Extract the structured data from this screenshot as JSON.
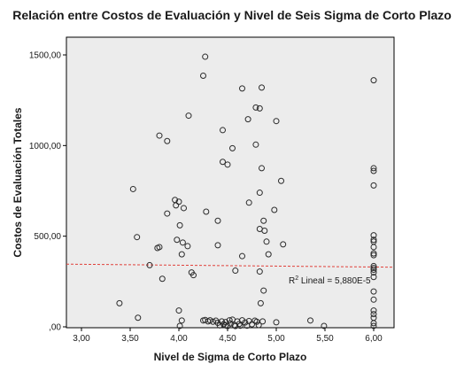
{
  "chart_data": {
    "type": "scatter",
    "title": "Relación entre Costos de Evaluación y Nivel de Seis Sigma de Corto Plazo",
    "xlabel": "Nivel de Sigma de Corto Plazo",
    "ylabel": "Costos de Evaluación Totales",
    "xlim": [
      3.0,
      6.0
    ],
    "ylim": [
      0,
      1500
    ],
    "xticks": [
      3.0,
      3.5,
      4.0,
      4.5,
      5.0,
      5.5,
      6.0
    ],
    "xtick_labels": [
      "3,00",
      "3,50",
      "4,00",
      "4,50",
      "5,00",
      "5,50",
      "6,00"
    ],
    "yticks": [
      0,
      500,
      1000,
      1500
    ],
    "ytick_labels": [
      ",00",
      "500,00",
      "1000,00",
      "1500,00"
    ],
    "grid": false,
    "background_color": "#ececec",
    "marker_color": "#2b2b2b",
    "fit_line": {
      "type": "linear",
      "style": "dashed",
      "color": "#e0403a",
      "x": [
        3.0,
        6.0
      ],
      "y": [
        345,
        330
      ],
      "annotation_prefix": "R",
      "annotation_sup": "2",
      "annotation_text": " Lineal = 5,880E-5"
    },
    "points": [
      {
        "x": 4.27,
        "y": 1490
      },
      {
        "x": 4.25,
        "y": 1385
      },
      {
        "x": 4.65,
        "y": 1315
      },
      {
        "x": 4.85,
        "y": 1320
      },
      {
        "x": 6.0,
        "y": 1360
      },
      {
        "x": 4.79,
        "y": 1210
      },
      {
        "x": 4.83,
        "y": 1205
      },
      {
        "x": 4.1,
        "y": 1165
      },
      {
        "x": 4.71,
        "y": 1145
      },
      {
        "x": 5.0,
        "y": 1135
      },
      {
        "x": 4.45,
        "y": 1085
      },
      {
        "x": 3.8,
        "y": 1055
      },
      {
        "x": 3.88,
        "y": 1025
      },
      {
        "x": 4.79,
        "y": 1005
      },
      {
        "x": 4.55,
        "y": 985
      },
      {
        "x": 4.45,
        "y": 910
      },
      {
        "x": 4.5,
        "y": 895
      },
      {
        "x": 4.85,
        "y": 875
      },
      {
        "x": 5.05,
        "y": 805
      },
      {
        "x": 3.53,
        "y": 760
      },
      {
        "x": 4.83,
        "y": 740
      },
      {
        "x": 4.0,
        "y": 690
      },
      {
        "x": 3.96,
        "y": 700
      },
      {
        "x": 3.97,
        "y": 670
      },
      {
        "x": 4.72,
        "y": 685
      },
      {
        "x": 4.05,
        "y": 655
      },
      {
        "x": 4.28,
        "y": 635
      },
      {
        "x": 4.98,
        "y": 645
      },
      {
        "x": 3.88,
        "y": 625
      },
      {
        "x": 4.4,
        "y": 585
      },
      {
        "x": 4.87,
        "y": 585
      },
      {
        "x": 4.01,
        "y": 560
      },
      {
        "x": 4.83,
        "y": 540
      },
      {
        "x": 4.88,
        "y": 530
      },
      {
        "x": 3.57,
        "y": 495
      },
      {
        "x": 3.98,
        "y": 480
      },
      {
        "x": 4.04,
        "y": 465
      },
      {
        "x": 4.9,
        "y": 470
      },
      {
        "x": 4.09,
        "y": 445
      },
      {
        "x": 4.4,
        "y": 450
      },
      {
        "x": 5.07,
        "y": 455
      },
      {
        "x": 3.8,
        "y": 440
      },
      {
        "x": 3.78,
        "y": 435
      },
      {
        "x": 4.03,
        "y": 400
      },
      {
        "x": 4.65,
        "y": 390
      },
      {
        "x": 4.92,
        "y": 400
      },
      {
        "x": 3.7,
        "y": 340
      },
      {
        "x": 4.13,
        "y": 300
      },
      {
        "x": 4.15,
        "y": 285
      },
      {
        "x": 3.83,
        "y": 265
      },
      {
        "x": 4.83,
        "y": 305
      },
      {
        "x": 4.58,
        "y": 310
      },
      {
        "x": 4.87,
        "y": 200
      },
      {
        "x": 4.84,
        "y": 130
      },
      {
        "x": 3.39,
        "y": 130
      },
      {
        "x": 4.0,
        "y": 90
      },
      {
        "x": 3.58,
        "y": 50
      },
      {
        "x": 4.03,
        "y": 35
      },
      {
        "x": 4.01,
        "y": 5
      },
      {
        "x": 5.35,
        "y": 35
      },
      {
        "x": 5.49,
        "y": 5
      },
      {
        "x": 5.0,
        "y": 25
      },
      {
        "x": 4.25,
        "y": 35
      },
      {
        "x": 4.27,
        "y": 38
      },
      {
        "x": 4.3,
        "y": 30
      },
      {
        "x": 4.32,
        "y": 36
      },
      {
        "x": 4.35,
        "y": 28
      },
      {
        "x": 4.38,
        "y": 34
      },
      {
        "x": 4.4,
        "y": 22
      },
      {
        "x": 4.42,
        "y": 8
      },
      {
        "x": 4.44,
        "y": 30
      },
      {
        "x": 4.46,
        "y": 14
      },
      {
        "x": 4.48,
        "y": 26
      },
      {
        "x": 4.5,
        "y": 4
      },
      {
        "x": 4.52,
        "y": 36
      },
      {
        "x": 4.53,
        "y": 18
      },
      {
        "x": 4.55,
        "y": 40
      },
      {
        "x": 4.57,
        "y": 10
      },
      {
        "x": 4.6,
        "y": 30
      },
      {
        "x": 4.62,
        "y": 16
      },
      {
        "x": 4.65,
        "y": 36
      },
      {
        "x": 4.68,
        "y": 24
      },
      {
        "x": 4.7,
        "y": 6
      },
      {
        "x": 4.72,
        "y": 32
      },
      {
        "x": 4.75,
        "y": 14
      },
      {
        "x": 4.78,
        "y": 34
      },
      {
        "x": 4.8,
        "y": 28
      },
      {
        "x": 4.82,
        "y": 10
      },
      {
        "x": 4.86,
        "y": 30
      },
      {
        "x": 4.48,
        "y": 8
      },
      {
        "x": 4.58,
        "y": 4
      },
      {
        "x": 4.63,
        "y": 6
      },
      {
        "x": 6.0,
        "y": 875
      },
      {
        "x": 6.0,
        "y": 860
      },
      {
        "x": 6.0,
        "y": 780
      },
      {
        "x": 6.0,
        "y": 505
      },
      {
        "x": 6.0,
        "y": 480
      },
      {
        "x": 6.0,
        "y": 470
      },
      {
        "x": 6.0,
        "y": 440
      },
      {
        "x": 6.0,
        "y": 405
      },
      {
        "x": 6.0,
        "y": 395
      },
      {
        "x": 6.0,
        "y": 335
      },
      {
        "x": 6.0,
        "y": 325
      },
      {
        "x": 6.0,
        "y": 315
      },
      {
        "x": 6.0,
        "y": 300
      },
      {
        "x": 6.0,
        "y": 275
      },
      {
        "x": 6.0,
        "y": 195
      },
      {
        "x": 6.0,
        "y": 150
      },
      {
        "x": 6.0,
        "y": 90
      },
      {
        "x": 6.0,
        "y": 70
      },
      {
        "x": 6.0,
        "y": 50
      },
      {
        "x": 6.0,
        "y": 20
      },
      {
        "x": 6.0,
        "y": 5
      }
    ]
  }
}
